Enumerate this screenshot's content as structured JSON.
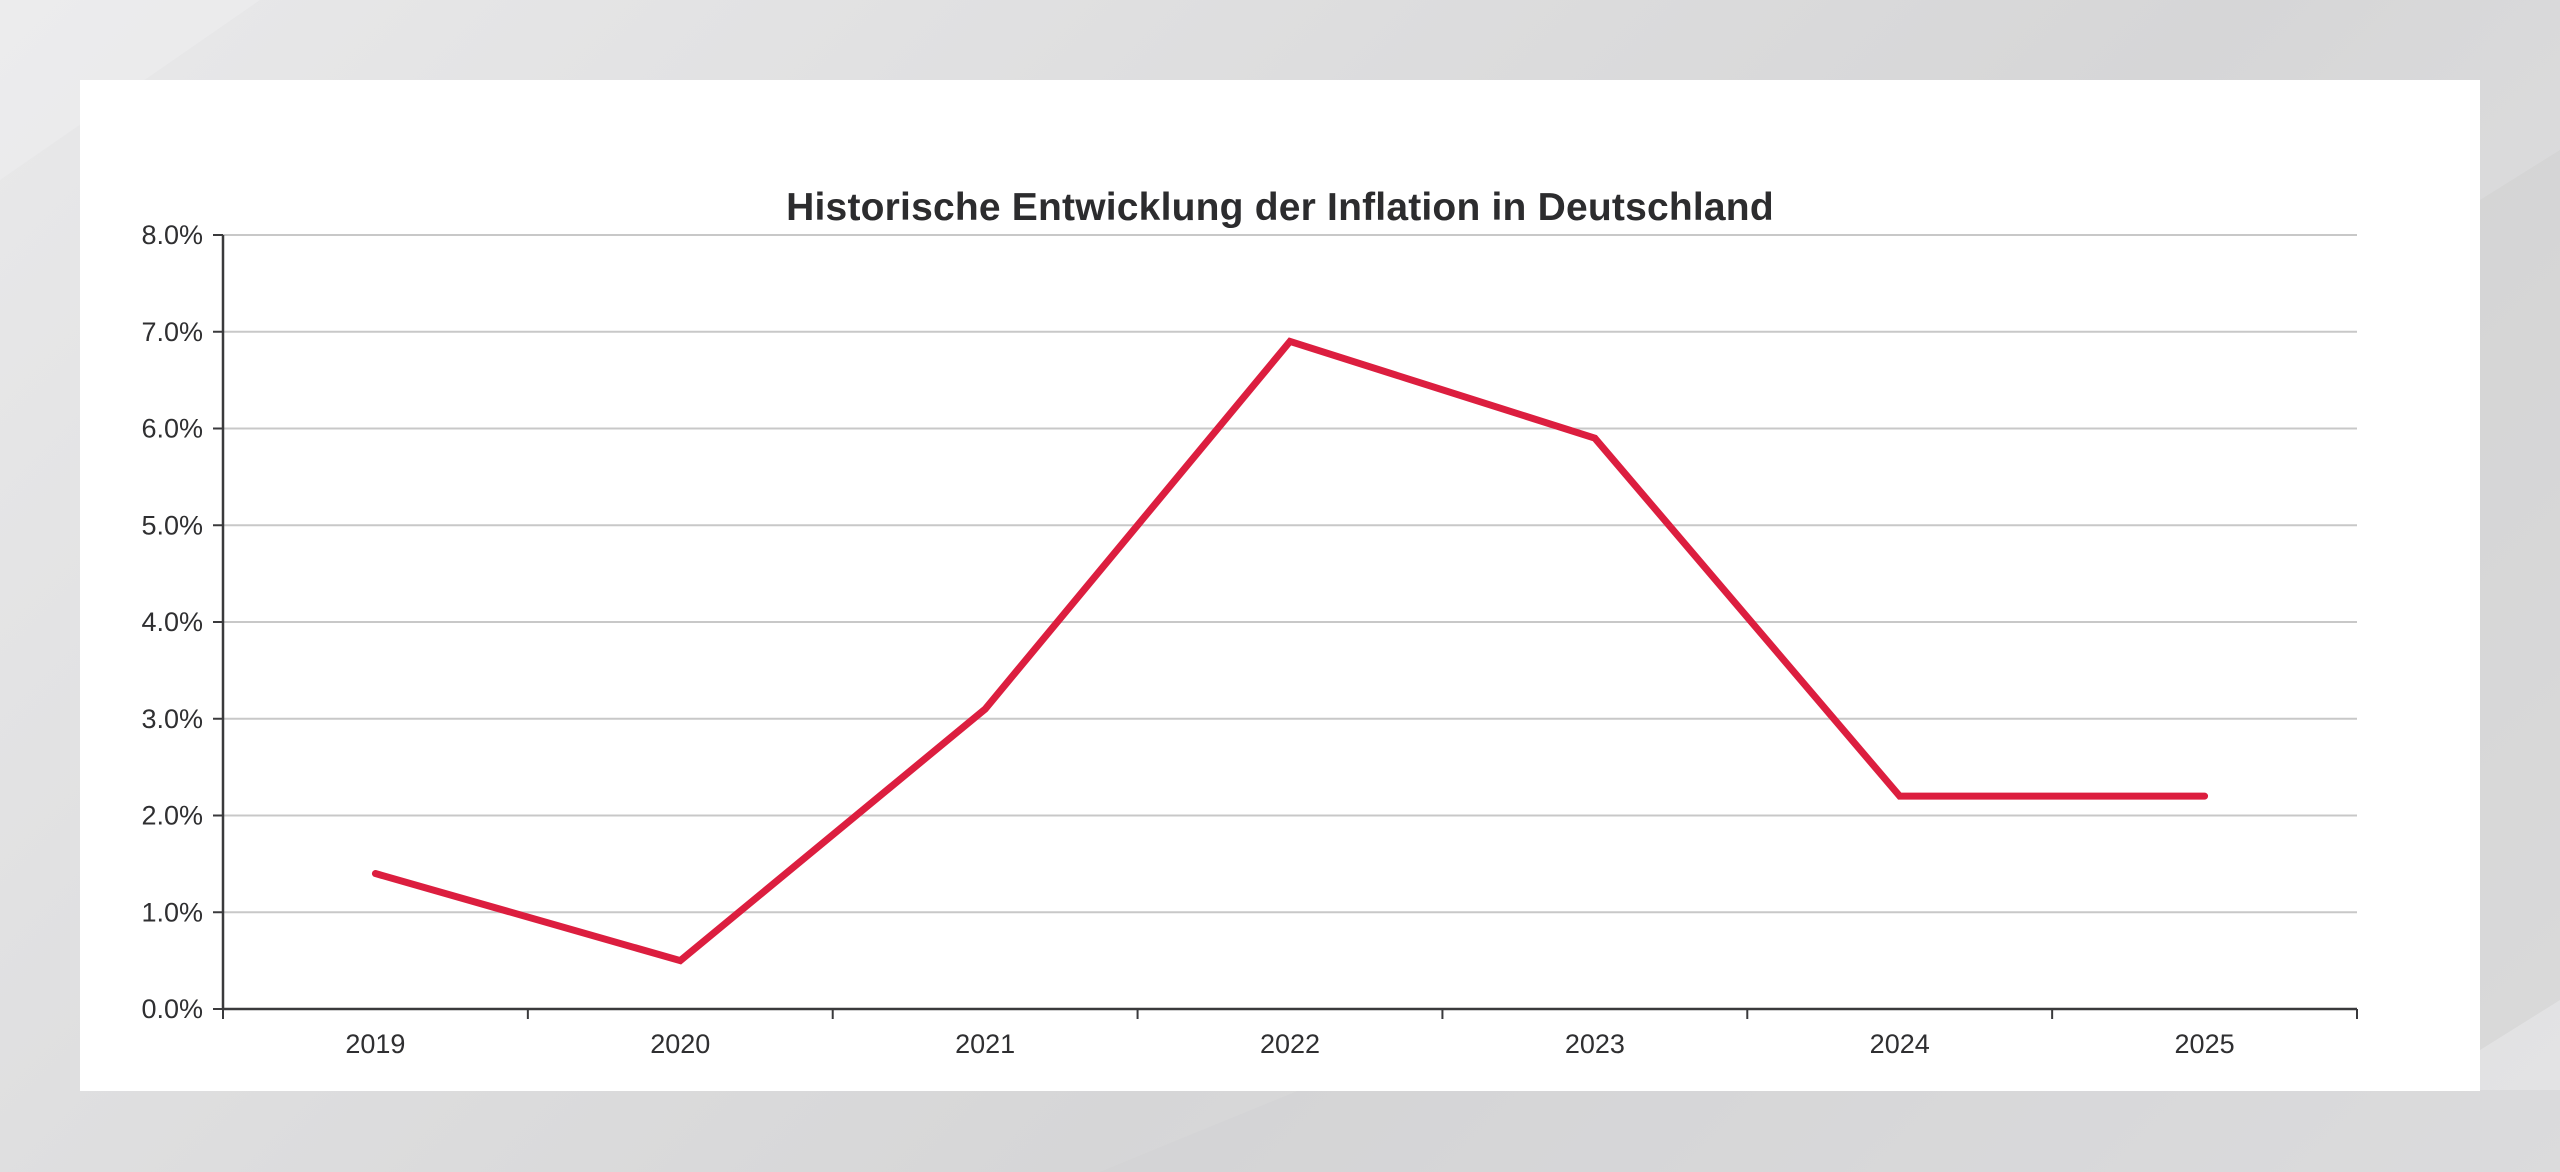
{
  "chart_data": {
    "type": "line",
    "title": "Historische Entwicklung der Inflation in Deutschland",
    "xlabel": "",
    "ylabel": "",
    "categories": [
      "2019",
      "2020",
      "2021",
      "2022",
      "2023",
      "2024",
      "2025"
    ],
    "series": [
      {
        "values": [
          1.4,
          0.5,
          3.1,
          6.9,
          5.9,
          2.2,
          2.2
        ],
        "color": "#dc1e3f"
      }
    ],
    "ylim": [
      0,
      8
    ],
    "yticks": [
      0,
      1,
      2,
      3,
      4,
      5,
      6,
      7,
      8
    ],
    "ytick_labels": [
      "0.0%",
      "1.0%",
      "2.0%",
      "3.0%",
      "4.0%",
      "5.0%",
      "6.0%",
      "7.0%",
      "8.0%"
    ],
    "grid": true,
    "legend": "none"
  },
  "colors": {
    "line": "#dc1e3f",
    "grid": "#c8c8c8",
    "axis": "#3a3a3c",
    "card": "#ffffff"
  }
}
